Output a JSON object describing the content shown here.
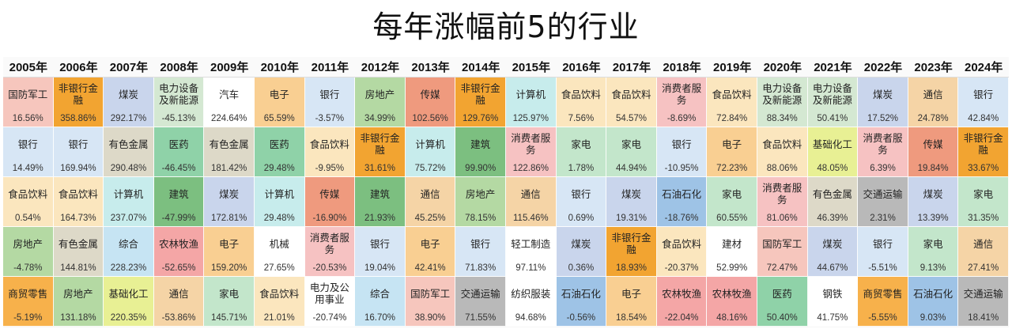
{
  "page": {
    "title": "每年涨幅前5的行业"
  },
  "colors": {
    "国防军工": "#f6c6bd",
    "非银行金融": "#f2a431",
    "煤炭": "#c9d5ec",
    "电力设备及新能源": "#d4e8d2",
    "汽车": "#ffffff",
    "电子": "#f9cf92",
    "银行": "#d7e6f5",
    "房地产": "#b4d9a3",
    "传媒": "#ef9a7e",
    "计算机": "#c7ecec",
    "食品饮料": "#fbe6be",
    "消费者服务": "#f6c2c2",
    "有色金属": "#ddd9c8",
    "医药": "#8fd2a8",
    "基础化工": "#e8f094",
    "家电": "#c3e6cb",
    "建筑": "#7cbf80",
    "通信": "#f5d4a6",
    "石油石化": "#9ec3e6",
    "交通运输": "#b9b9b9",
    "综合": "#c6e4f3",
    "农林牧渔": "#f4a6a6",
    "机械": "#ffffff",
    "轻工制造": "#ffffff",
    "建材": "#ffffff",
    "商贸零售": "#f7b14b",
    "电力及公用事业": "#ffffff",
    "纺织服装": "#ffffff",
    "钢铁": "#ffffff"
  },
  "chart_data": {
    "type": "table",
    "title": "每年涨幅前5的行业",
    "years": [
      "2005年",
      "2006年",
      "2007年",
      "2008年",
      "2009年",
      "2010年",
      "2011年",
      "2012年",
      "2013年",
      "2014年",
      "2015年",
      "2016年",
      "2017年",
      "2018年",
      "2019年",
      "2020年",
      "2021年",
      "2022年",
      "2023年",
      "2024年"
    ],
    "columns": [
      [
        {
          "name": "国防军工",
          "value": "16.56%"
        },
        {
          "name": "银行",
          "value": "14.49%"
        },
        {
          "name": "食品饮料",
          "value": "0.54%"
        },
        {
          "name": "房地产",
          "value": "-4.78%"
        },
        {
          "name": "商贸零售",
          "value": "-5.19%"
        }
      ],
      [
        {
          "name": "非银行金融",
          "value": "358.86%"
        },
        {
          "name": "银行",
          "value": "169.94%"
        },
        {
          "name": "食品饮料",
          "value": "164.73%"
        },
        {
          "name": "有色金属",
          "value": "144.81%"
        },
        {
          "name": "房地产",
          "value": "131.18%"
        }
      ],
      [
        {
          "name": "煤炭",
          "value": "292.17%"
        },
        {
          "name": "有色金属",
          "value": "290.48%"
        },
        {
          "name": "计算机",
          "value": "237.07%"
        },
        {
          "name": "综合",
          "value": "228.23%"
        },
        {
          "name": "基础化工",
          "value": "220.35%"
        }
      ],
      [
        {
          "name": "电力设备及新能源",
          "value": "-45.13%"
        },
        {
          "name": "医药",
          "value": "-46.45%"
        },
        {
          "name": "建筑",
          "value": "-47.99%"
        },
        {
          "name": "农林牧渔",
          "value": "-52.65%"
        },
        {
          "name": "通信",
          "value": "-53.86%"
        }
      ],
      [
        {
          "name": "汽车",
          "value": "224.64%"
        },
        {
          "name": "有色金属",
          "value": "181.42%"
        },
        {
          "name": "煤炭",
          "value": "172.81%"
        },
        {
          "name": "电子",
          "value": "159.20%"
        },
        {
          "name": "家电",
          "value": "145.71%"
        }
      ],
      [
        {
          "name": "电子",
          "value": "65.59%"
        },
        {
          "name": "医药",
          "value": "29.48%"
        },
        {
          "name": "计算机",
          "value": "29.48%"
        },
        {
          "name": "机械",
          "value": "27.65%"
        },
        {
          "name": "食品饮料",
          "value": "21.01%"
        }
      ],
      [
        {
          "name": "银行",
          "value": "-3.57%"
        },
        {
          "name": "食品饮料",
          "value": "-9.95%"
        },
        {
          "name": "传媒",
          "value": "-16.90%"
        },
        {
          "name": "消费者服务",
          "value": "-20.53%"
        },
        {
          "name": "电力及公用事业",
          "value": "-20.74%"
        }
      ],
      [
        {
          "name": "房地产",
          "value": "34.99%"
        },
        {
          "name": "非银行金融",
          "value": "31.61%"
        },
        {
          "name": "建筑",
          "value": "21.93%"
        },
        {
          "name": "银行",
          "value": "19.04%"
        },
        {
          "name": "综合",
          "value": "16.70%"
        }
      ],
      [
        {
          "name": "传媒",
          "value": "102.56%"
        },
        {
          "name": "计算机",
          "value": "75.72%"
        },
        {
          "name": "通信",
          "value": "45.25%"
        },
        {
          "name": "电子",
          "value": "42.41%"
        },
        {
          "name": "国防军工",
          "value": "38.90%"
        }
      ],
      [
        {
          "name": "非银行金融",
          "value": "129.76%"
        },
        {
          "name": "建筑",
          "value": "99.90%"
        },
        {
          "name": "房地产",
          "value": "78.15%"
        },
        {
          "name": "银行",
          "value": "71.83%"
        },
        {
          "name": "交通运输",
          "value": "71.55%"
        }
      ],
      [
        {
          "name": "计算机",
          "value": "125.97%"
        },
        {
          "name": "消费者服务",
          "value": "122.86%"
        },
        {
          "name": "通信",
          "value": "115.46%"
        },
        {
          "name": "轻工制造",
          "value": "97.11%"
        },
        {
          "name": "纺织服装",
          "value": "94.68%"
        }
      ],
      [
        {
          "name": "食品饮料",
          "value": "7.56%"
        },
        {
          "name": "家电",
          "value": "1.78%"
        },
        {
          "name": "银行",
          "value": "0.69%"
        },
        {
          "name": "煤炭",
          "value": "0.36%"
        },
        {
          "name": "石油石化",
          "value": "-0.56%"
        }
      ],
      [
        {
          "name": "食品饮料",
          "value": "54.57%"
        },
        {
          "name": "家电",
          "value": "44.94%"
        },
        {
          "name": "煤炭",
          "value": "19.31%"
        },
        {
          "name": "非银行金融",
          "value": "18.93%"
        },
        {
          "name": "电子",
          "value": "18.54%"
        }
      ],
      [
        {
          "name": "消费者服务",
          "value": "-8.69%"
        },
        {
          "name": "银行",
          "value": "-10.95%"
        },
        {
          "name": "石油石化",
          "value": "-18.76%"
        },
        {
          "name": "食品饮料",
          "value": "-20.37%"
        },
        {
          "name": "农林牧渔",
          "value": "-22.04%"
        }
      ],
      [
        {
          "name": "食品饮料",
          "value": "72.84%"
        },
        {
          "name": "电子",
          "value": "72.23%"
        },
        {
          "name": "家电",
          "value": "60.55%"
        },
        {
          "name": "建材",
          "value": "52.99%"
        },
        {
          "name": "农林牧渔",
          "value": "48.16%"
        }
      ],
      [
        {
          "name": "电力设备及新能源",
          "value": "88.34%"
        },
        {
          "name": "食品饮料",
          "value": "88.06%"
        },
        {
          "name": "消费者服务",
          "value": "81.06%"
        },
        {
          "name": "国防军工",
          "value": "72.47%"
        },
        {
          "name": "医药",
          "value": "50.40%"
        }
      ],
      [
        {
          "name": "电力设备及新能源",
          "value": "50.41%"
        },
        {
          "name": "基础化工",
          "value": "48.05%"
        },
        {
          "name": "有色金属",
          "value": "46.39%"
        },
        {
          "name": "煤炭",
          "value": "44.67%"
        },
        {
          "name": "钢铁",
          "value": "41.75%"
        }
      ],
      [
        {
          "name": "煤炭",
          "value": "17.52%"
        },
        {
          "name": "消费者服务",
          "value": "6.39%"
        },
        {
          "name": "交通运输",
          "value": "2.31%"
        },
        {
          "name": "银行",
          "value": "-5.51%"
        },
        {
          "name": "商贸零售",
          "value": "-5.55%"
        }
      ],
      [
        {
          "name": "通信",
          "value": "24.78%"
        },
        {
          "name": "传媒",
          "value": "19.84%"
        },
        {
          "name": "煤炭",
          "value": "13.39%"
        },
        {
          "name": "家电",
          "value": "9.13%"
        },
        {
          "name": "石油石化",
          "value": "9.03%"
        }
      ],
      [
        {
          "name": "银行",
          "value": "42.84%"
        },
        {
          "name": "非银行金融",
          "value": "33.67%"
        },
        {
          "name": "家电",
          "value": "31.35%"
        },
        {
          "name": "通信",
          "value": "27.41%"
        },
        {
          "name": "交通运输",
          "value": "18.41%"
        }
      ]
    ]
  }
}
